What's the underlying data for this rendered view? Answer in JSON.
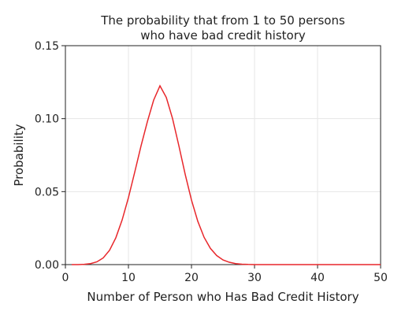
{
  "chart_data": {
    "type": "line",
    "title_lines": [
      "The probability that from 1 to 50 persons",
      "who have bad credit history"
    ],
    "xlabel": "Number of Person who Has Bad Credit History",
    "ylabel": "Probability",
    "xlim": [
      0,
      50
    ],
    "ylim": [
      0,
      0.15
    ],
    "x_ticks": [
      0,
      10,
      20,
      30,
      40,
      50
    ],
    "x_tick_labels": [
      "0",
      "10",
      "20",
      "30",
      "40",
      "50"
    ],
    "y_ticks": [
      0,
      0.05,
      0.1,
      0.15
    ],
    "y_tick_labels": [
      "0.00",
      "0.05",
      "0.10",
      "0.15"
    ],
    "grid": true,
    "series": [
      {
        "color": "#e8272b",
        "x": [
          1,
          2,
          3,
          4,
          5,
          6,
          7,
          8,
          9,
          10,
          11,
          12,
          13,
          14,
          15,
          16,
          17,
          18,
          19,
          20,
          21,
          22,
          23,
          24,
          25,
          26,
          27,
          28,
          29,
          30,
          31,
          32,
          33,
          34,
          35,
          36,
          37,
          38,
          39,
          40,
          41,
          42,
          43,
          44,
          45,
          46,
          47,
          48,
          49,
          50
        ],
        "y": [
          0.0,
          0.0,
          0.0002,
          0.0007,
          0.0019,
          0.0046,
          0.0098,
          0.0184,
          0.0306,
          0.0459,
          0.0634,
          0.0814,
          0.0979,
          0.1127,
          0.1225,
          0.1146,
          0.1,
          0.0814,
          0.0619,
          0.0442,
          0.0297,
          0.0187,
          0.0111,
          0.0062,
          0.0032,
          0.0016,
          0.0007,
          0.0003,
          0.0001,
          0.0,
          0.0,
          0.0,
          0.0,
          0.0,
          0.0,
          0.0,
          0.0,
          0.0,
          0.0,
          0.0,
          0.0,
          0.0,
          0.0,
          0.0,
          0.0,
          0.0,
          0.0,
          0.0,
          0.0,
          0.0
        ]
      }
    ]
  }
}
